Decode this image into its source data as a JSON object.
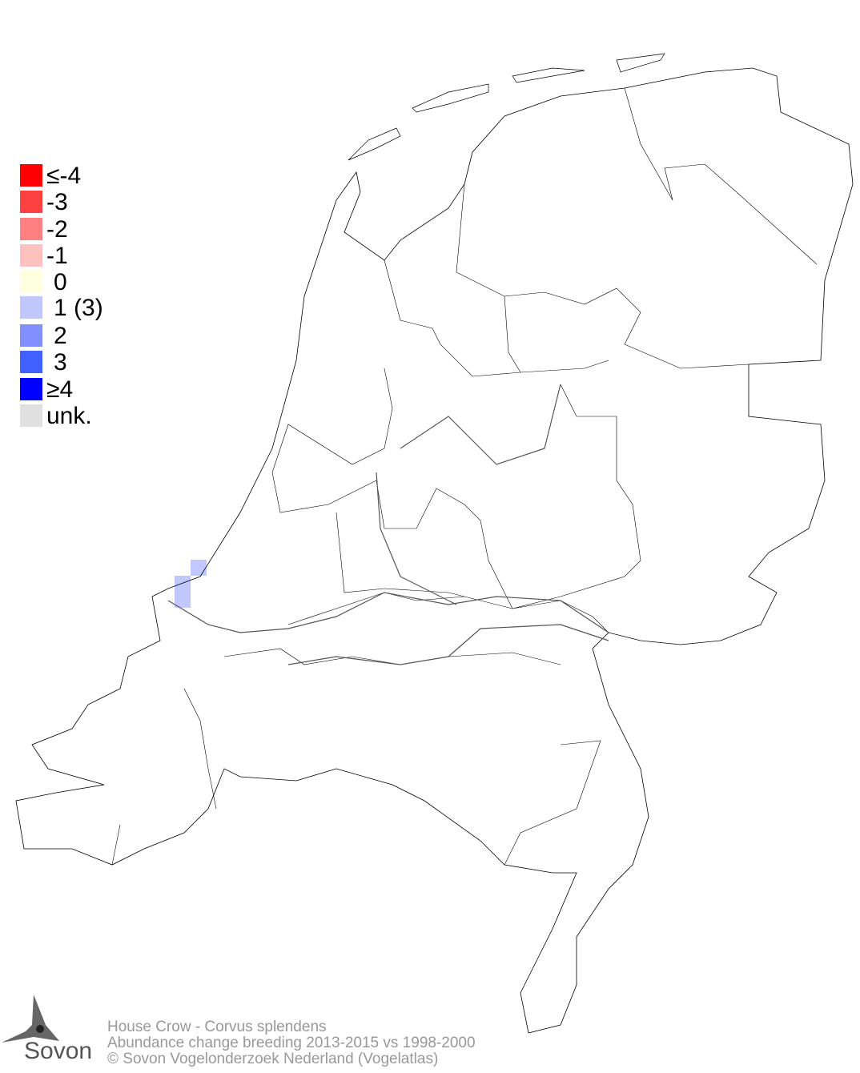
{
  "legend": {
    "items": [
      {
        "label": "≤-4",
        "color": "#ff0000"
      },
      {
        "label": "-3",
        "color": "#ff4040"
      },
      {
        "label": "-2",
        "color": "#ff8080"
      },
      {
        "label": "-1",
        "color": "#ffc0c0"
      },
      {
        "label": "0",
        "color": "#ffffe0"
      },
      {
        "label": "1 (3)",
        "color": "#c0c8ff"
      },
      {
        "label": "2",
        "color": "#8090ff"
      },
      {
        "label": "3",
        "color": "#4060ff"
      },
      {
        "label": "≥4",
        "color": "#0000ff"
      },
      {
        "label": "unk.",
        "color": "#e0e0e0"
      }
    ]
  },
  "map": {
    "cells": [
      {
        "value": 1,
        "color": "#c0c8ff"
      },
      {
        "value": 1,
        "color": "#c0c8ff"
      },
      {
        "value": 1,
        "color": "#c0c8ff"
      }
    ]
  },
  "footer": {
    "species": "House Crow - Corvus splendens",
    "subtitle": "Abundance change breeding  2013-2015 vs 1998-2000",
    "copyright": "© Sovon Vogelonderzoek Nederland (Vogelatlas)"
  },
  "logo": {
    "text": "Sovon"
  }
}
